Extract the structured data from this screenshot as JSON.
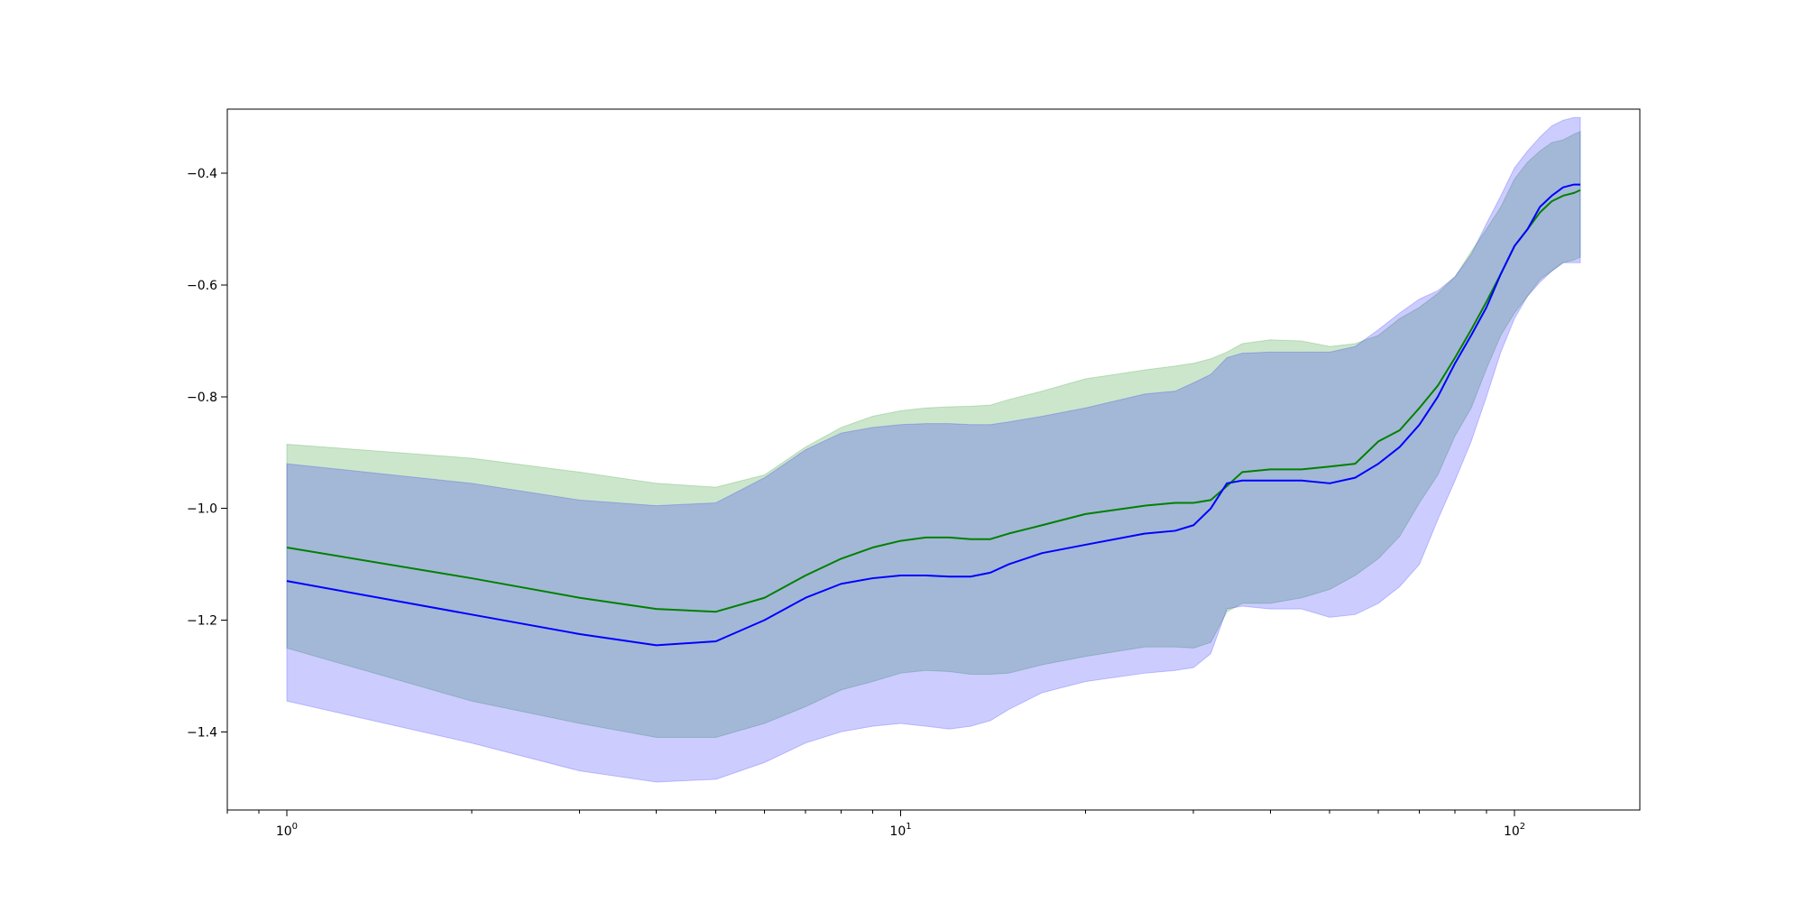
{
  "chart_data": {
    "type": "line",
    "x_scale": "log",
    "xlim": [
      0.8,
      160
    ],
    "ylim": [
      -1.54,
      -0.285
    ],
    "x_ticks": [
      {
        "value": 1,
        "base": "10",
        "exp": "0"
      },
      {
        "value": 10,
        "base": "10",
        "exp": "1"
      },
      {
        "value": 100,
        "base": "10",
        "exp": "2"
      }
    ],
    "y_ticks": [
      {
        "value": -1.4,
        "label": "−1.4"
      },
      {
        "value": -1.2,
        "label": "−1.2"
      },
      {
        "value": -1.0,
        "label": "−1.0"
      },
      {
        "value": -0.8,
        "label": "−0.8"
      },
      {
        "value": -0.6,
        "label": "−0.6"
      },
      {
        "value": -0.4,
        "label": "−0.4"
      }
    ],
    "grid": false,
    "series": [
      {
        "color": "#008000",
        "band_color": "#008000",
        "band_opacity": 0.2,
        "x": [
          1,
          2,
          3,
          4,
          5,
          6,
          7,
          8,
          9,
          10,
          11,
          12,
          13,
          14,
          15,
          17,
          20,
          25,
          28,
          30,
          32,
          34,
          36,
          40,
          45,
          50,
          55,
          60,
          65,
          70,
          75,
          80,
          85,
          90,
          95,
          100,
          105,
          110,
          115,
          120,
          125,
          128
        ],
        "y": [
          -1.07,
          -1.125,
          -1.16,
          -1.18,
          -1.185,
          -1.16,
          -1.12,
          -1.09,
          -1.07,
          -1.058,
          -1.052,
          -1.052,
          -1.055,
          -1.055,
          -1.045,
          -1.03,
          -1.01,
          -0.995,
          -0.99,
          -0.99,
          -0.985,
          -0.96,
          -0.935,
          -0.93,
          -0.93,
          -0.925,
          -0.92,
          -0.88,
          -0.86,
          -0.82,
          -0.78,
          -0.73,
          -0.68,
          -0.63,
          -0.58,
          -0.53,
          -0.5,
          -0.47,
          -0.45,
          -0.44,
          -0.435,
          -0.43
        ],
        "upper": [
          -0.885,
          -0.91,
          -0.935,
          -0.955,
          -0.962,
          -0.94,
          -0.89,
          -0.855,
          -0.835,
          -0.825,
          -0.82,
          -0.818,
          -0.817,
          -0.815,
          -0.805,
          -0.79,
          -0.768,
          -0.752,
          -0.745,
          -0.74,
          -0.732,
          -0.72,
          -0.705,
          -0.698,
          -0.7,
          -0.71,
          -0.705,
          -0.69,
          -0.66,
          -0.64,
          -0.615,
          -0.585,
          -0.54,
          -0.5,
          -0.46,
          -0.41,
          -0.38,
          -0.36,
          -0.345,
          -0.34,
          -0.33,
          -0.325
        ],
        "lower": [
          -1.25,
          -1.345,
          -1.385,
          -1.41,
          -1.41,
          -1.385,
          -1.355,
          -1.325,
          -1.31,
          -1.295,
          -1.29,
          -1.292,
          -1.297,
          -1.297,
          -1.295,
          -1.28,
          -1.265,
          -1.248,
          -1.248,
          -1.25,
          -1.24,
          -1.185,
          -1.17,
          -1.17,
          -1.16,
          -1.145,
          -1.12,
          -1.09,
          -1.05,
          -0.99,
          -0.94,
          -0.87,
          -0.82,
          -0.75,
          -0.69,
          -0.65,
          -0.62,
          -0.59,
          -0.575,
          -0.56,
          -0.555,
          -0.55
        ]
      },
      {
        "color": "#0000ff",
        "band_color": "#0000ff",
        "band_opacity": 0.2,
        "x": [
          1,
          2,
          3,
          4,
          5,
          6,
          7,
          8,
          9,
          10,
          11,
          12,
          13,
          14,
          15,
          17,
          20,
          25,
          28,
          30,
          32,
          34,
          36,
          40,
          45,
          50,
          55,
          60,
          65,
          70,
          75,
          80,
          85,
          90,
          95,
          100,
          105,
          110,
          115,
          120,
          125,
          128
        ],
        "y": [
          -1.13,
          -1.19,
          -1.225,
          -1.245,
          -1.238,
          -1.2,
          -1.16,
          -1.135,
          -1.125,
          -1.12,
          -1.12,
          -1.122,
          -1.122,
          -1.115,
          -1.1,
          -1.08,
          -1.065,
          -1.045,
          -1.04,
          -1.03,
          -1.0,
          -0.955,
          -0.95,
          -0.95,
          -0.95,
          -0.955,
          -0.945,
          -0.92,
          -0.89,
          -0.85,
          -0.8,
          -0.74,
          -0.69,
          -0.64,
          -0.58,
          -0.53,
          -0.5,
          -0.46,
          -0.44,
          -0.425,
          -0.42,
          -0.42
        ],
        "upper": [
          -0.92,
          -0.955,
          -0.985,
          -0.995,
          -0.99,
          -0.945,
          -0.895,
          -0.865,
          -0.855,
          -0.85,
          -0.848,
          -0.848,
          -0.85,
          -0.85,
          -0.845,
          -0.835,
          -0.82,
          -0.795,
          -0.79,
          -0.775,
          -0.76,
          -0.73,
          -0.722,
          -0.72,
          -0.72,
          -0.72,
          -0.71,
          -0.68,
          -0.65,
          -0.625,
          -0.61,
          -0.585,
          -0.545,
          -0.49,
          -0.44,
          -0.39,
          -0.36,
          -0.335,
          -0.315,
          -0.305,
          -0.3,
          -0.3
        ],
        "lower": [
          -1.345,
          -1.42,
          -1.47,
          -1.49,
          -1.485,
          -1.455,
          -1.42,
          -1.4,
          -1.39,
          -1.385,
          -1.39,
          -1.395,
          -1.39,
          -1.38,
          -1.36,
          -1.33,
          -1.31,
          -1.295,
          -1.29,
          -1.285,
          -1.26,
          -1.18,
          -1.175,
          -1.18,
          -1.18,
          -1.195,
          -1.19,
          -1.17,
          -1.14,
          -1.1,
          -1.02,
          -0.95,
          -0.88,
          -0.8,
          -0.72,
          -0.66,
          -0.62,
          -0.595,
          -0.575,
          -0.56,
          -0.56,
          -0.56
        ]
      }
    ]
  }
}
